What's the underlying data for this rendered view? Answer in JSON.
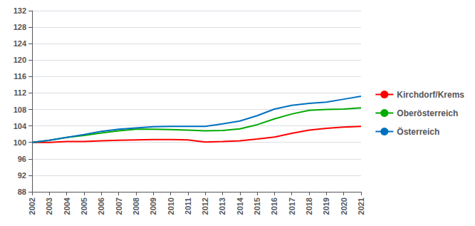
{
  "chart_data": {
    "type": "line",
    "x": [
      2002,
      2003,
      2004,
      2005,
      2006,
      2007,
      2008,
      2009,
      2010,
      2011,
      2012,
      2013,
      2014,
      2015,
      2016,
      2017,
      2018,
      2019,
      2020,
      2021
    ],
    "series": [
      {
        "name": "Kirchdorf/Krems",
        "color": "#ff0000",
        "values": [
          100.0,
          100.0,
          100.2,
          100.2,
          100.4,
          100.5,
          100.6,
          100.7,
          100.7,
          100.6,
          100.1,
          100.2,
          100.4,
          100.8,
          101.3,
          102.2,
          103.0,
          103.4,
          103.7,
          103.9
        ]
      },
      {
        "name": "Oberösterreich",
        "color": "#00aa00",
        "values": [
          100.0,
          100.5,
          101.2,
          101.7,
          102.3,
          102.8,
          103.2,
          103.2,
          103.1,
          103.0,
          102.8,
          102.9,
          103.3,
          104.3,
          105.7,
          106.9,
          107.8,
          108.0,
          108.1,
          108.4
        ]
      },
      {
        "name": "Österreich",
        "color": "#0070c0",
        "values": [
          100.0,
          100.5,
          101.2,
          101.9,
          102.7,
          103.2,
          103.5,
          103.8,
          103.9,
          103.9,
          103.9,
          104.5,
          105.2,
          106.5,
          108.1,
          109.0,
          109.5,
          109.8,
          110.5,
          111.2
        ]
      }
    ],
    "xlim": [
      2002,
      2021
    ],
    "xticks": [
      2002,
      2003,
      2004,
      2005,
      2006,
      2007,
      2008,
      2009,
      2010,
      2011,
      2012,
      2013,
      2014,
      2015,
      2016,
      2017,
      2018,
      2019,
      2020,
      2021
    ],
    "ylim": [
      88,
      132
    ],
    "yticks": [
      88,
      92,
      96,
      100,
      104,
      108,
      112,
      116,
      120,
      124,
      128,
      132
    ],
    "grid": true,
    "legend": "right"
  }
}
